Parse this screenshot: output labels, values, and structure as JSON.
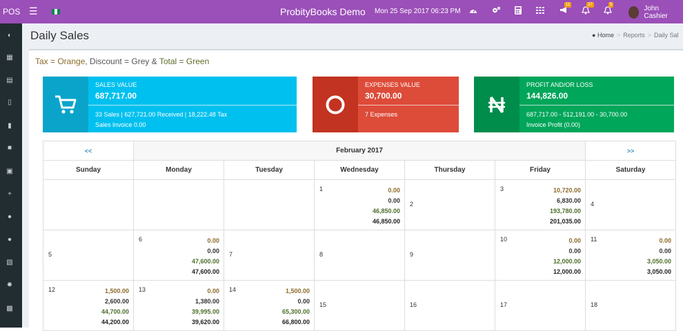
{
  "topbar": {
    "pos": "POS",
    "title": "ProbityBooks Demo",
    "datetime": "Mon 25 Sep 2017 06:23 PM",
    "badge_announce": "11",
    "badge_alert": "27",
    "badge_bell": "5",
    "user_name": "John Cashier",
    "flag_colors": [
      "#008751",
      "#ffffff",
      "#008751"
    ]
  },
  "page": {
    "title": "Daily Sales",
    "breadcrumb": [
      "Home",
      "Reports",
      "Daily Sal"
    ]
  },
  "legend": {
    "part1": "Tax = Orange",
    "part2": ", Discount = Grey & ",
    "part3": "Total = Green"
  },
  "cards": [
    {
      "label": "SALES VALUE",
      "value": "687,717.00",
      "detail1": "33 Sales | 627,721.00 Received | 18,222.48 Tax",
      "detail2": "Sales Invoice 0.00",
      "color": "#00c0ef",
      "icon": "cart-icon"
    },
    {
      "label": "EXPENSES VALUE",
      "value": "30,700.00",
      "detail1": "7 Expenses",
      "detail2": "",
      "color": "#dd4b39",
      "icon": "circle-icon"
    },
    {
      "label": "PROFIT AND/OR LOSS",
      "value": "144,826.00",
      "detail1": "687,717.00 - 512,191.00 - 30,700.00",
      "detail2": "Invoice Profit (0.00)",
      "color": "#00a65a",
      "icon": "naira-icon"
    }
  ],
  "calendar": {
    "prev": "<<",
    "next": ">>",
    "month": "February 2017",
    "days": [
      "Sunday",
      "Monday",
      "Tuesday",
      "Wednesday",
      "Thursday",
      "Friday",
      "Saturday"
    ],
    "weeks": [
      [
        {
          "n": "",
          "a": []
        },
        {
          "n": "",
          "a": []
        },
        {
          "n": "",
          "a": []
        },
        {
          "n": "1",
          "a": [
            "0.00",
            "0.00",
            "46,850.00",
            "46,850.00"
          ]
        },
        {
          "n": "2",
          "a": []
        },
        {
          "n": "3",
          "a": [
            "10,720.00",
            "6,830.00",
            "193,780.00",
            "201,035.00"
          ]
        },
        {
          "n": "4",
          "a": []
        }
      ],
      [
        {
          "n": "5",
          "a": []
        },
        {
          "n": "6",
          "a": [
            "0.00",
            "0.00",
            "47,600.00",
            "47,600.00"
          ]
        },
        {
          "n": "7",
          "a": []
        },
        {
          "n": "8",
          "a": []
        },
        {
          "n": "9",
          "a": []
        },
        {
          "n": "10",
          "a": [
            "0.00",
            "0.00",
            "12,000.00",
            "12,000.00"
          ]
        },
        {
          "n": "11",
          "a": [
            "0.00",
            "0.00",
            "3,050.00",
            "3,050.00"
          ]
        }
      ],
      [
        {
          "n": "12",
          "a": [
            "1,500.00",
            "2,600.00",
            "44,700.00",
            "44,200.00"
          ]
        },
        {
          "n": "13",
          "a": [
            "0.00",
            "1,380.00",
            "39,995.00",
            "39,620.00"
          ]
        },
        {
          "n": "14",
          "a": [
            "1,500.00",
            "0.00",
            "65,300.00",
            "66,800.00"
          ]
        },
        {
          "n": "15",
          "a": []
        },
        {
          "n": "16",
          "a": []
        },
        {
          "n": "17",
          "a": []
        },
        {
          "n": "18",
          "a": []
        }
      ]
    ]
  }
}
